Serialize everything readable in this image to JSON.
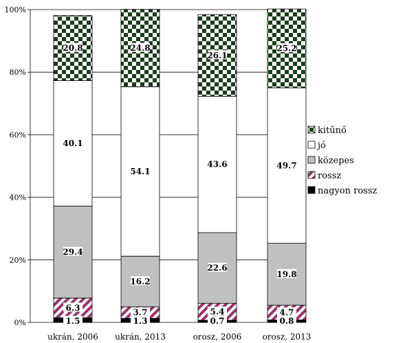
{
  "chart_data": {
    "type": "bar",
    "stacked": "percent",
    "categories": [
      "ukrán, 2006",
      "ukrán, 2013",
      "orosz, 2006",
      "orosz, 2013"
    ],
    "series": [
      {
        "name": "nagyon rossz",
        "values": [
          1.5,
          1.3,
          0.7,
          0.8
        ],
        "color": "#000000",
        "pattern": "solid"
      },
      {
        "name": "rossz",
        "values": [
          6.3,
          3.7,
          5.4,
          4.7
        ],
        "color": "#993366",
        "pattern": "diagonal-stripes"
      },
      {
        "name": "közepes",
        "values": [
          29.4,
          16.2,
          22.6,
          19.8
        ],
        "color": "#c0c0c0",
        "pattern": "solid"
      },
      {
        "name": "jó",
        "values": [
          40.1,
          54.1,
          43.6,
          49.7
        ],
        "color": "#ffffff",
        "pattern": "solid"
      },
      {
        "name": "kitűnő",
        "values": [
          20.8,
          24.8,
          26.1,
          25.2
        ],
        "color": "#1a3d1a",
        "pattern": "checkerboard"
      }
    ],
    "legend_order": [
      "kitűnő",
      "jó",
      "közepes",
      "rossz",
      "nagyon rossz"
    ],
    "legend_position": "right",
    "yticks": [
      "0%",
      "20%",
      "40%",
      "60%",
      "80%",
      "100%"
    ],
    "ylim": [
      0,
      100
    ],
    "grid": true
  }
}
